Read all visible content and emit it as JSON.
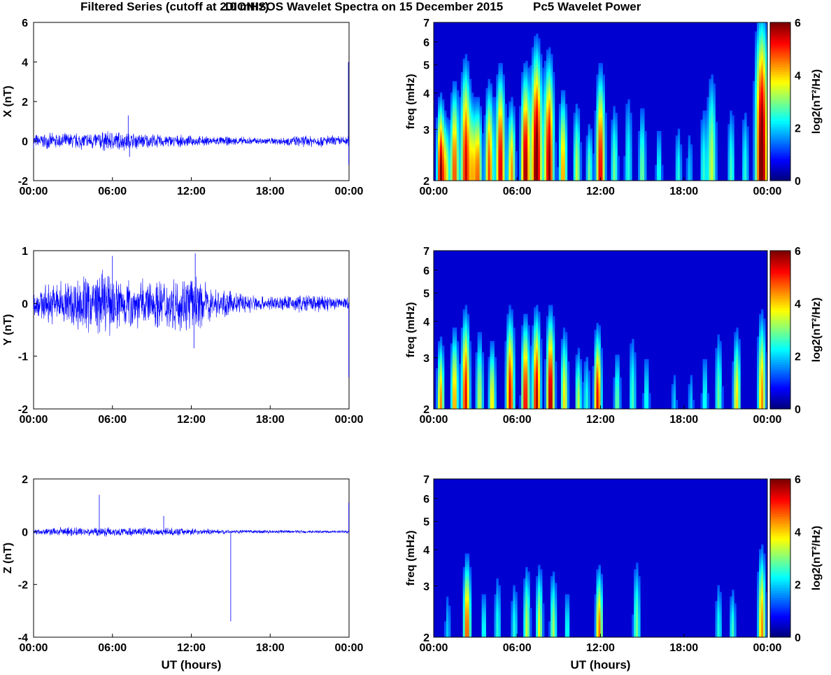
{
  "titles": {
    "left": "Filtered Series (cutoff at 2.0 mHz)",
    "center": "DIONISOS Wavelet Spectra on 15 December 2015",
    "right": "Pc5 Wavelet Power"
  },
  "chart_data": [
    {
      "type": "line",
      "component": "X",
      "ylabel": "X (nT)",
      "xlabel": "",
      "ylim": [
        -2,
        6
      ],
      "yticks": [
        "-2",
        "0",
        "2",
        "4",
        "6"
      ],
      "xticks": [
        "00:00",
        "06:00",
        "12:00",
        "18:00",
        "00:00"
      ],
      "xlim_hours": [
        0,
        24
      ],
      "noise_amp": [
        [
          0,
          0.4
        ],
        [
          4,
          0.5
        ],
        [
          6,
          0.6
        ],
        [
          9,
          0.4
        ],
        [
          12,
          0.3
        ],
        [
          18,
          0.2
        ],
        [
          21,
          0.35
        ],
        [
          24,
          0.3
        ]
      ],
      "spikes": [
        [
          7.2,
          1.3
        ],
        [
          7.3,
          -0.8
        ],
        [
          23.95,
          4.0
        ],
        [
          23.98,
          -1.2
        ]
      ],
      "color": "#0000ff"
    },
    {
      "type": "line",
      "component": "Y",
      "ylabel": "Y (nT)",
      "xlabel": "",
      "ylim": [
        -2,
        1
      ],
      "yticks": [
        "-2",
        "-1",
        "0",
        "1"
      ],
      "xticks": [
        "00:00",
        "06:00",
        "12:00",
        "18:00",
        "00:00"
      ],
      "xlim_hours": [
        0,
        24
      ],
      "noise_amp": [
        [
          0,
          0.3
        ],
        [
          2,
          0.5
        ],
        [
          5,
          0.7
        ],
        [
          8,
          0.5
        ],
        [
          12,
          0.6
        ],
        [
          14,
          0.3
        ],
        [
          18,
          0.15
        ],
        [
          21,
          0.2
        ],
        [
          24,
          0.15
        ]
      ],
      "spikes": [
        [
          12.3,
          0.95
        ],
        [
          12.2,
          -0.85
        ],
        [
          23.98,
          -1.4
        ],
        [
          6,
          0.9
        ]
      ],
      "color": "#0000ff"
    },
    {
      "type": "line",
      "component": "Z",
      "ylabel": "Z (nT)",
      "xlabel": "UT (hours)",
      "ylim": [
        -4,
        2
      ],
      "yticks": [
        "-4",
        "-2",
        "0",
        "2"
      ],
      "xticks": [
        "00:00",
        "06:00",
        "12:00",
        "18:00",
        "00:00"
      ],
      "xlim_hours": [
        0,
        24
      ],
      "noise_amp": [
        [
          0,
          0.1
        ],
        [
          2,
          0.2
        ],
        [
          6,
          0.2
        ],
        [
          12,
          0.15
        ],
        [
          15,
          0.08
        ],
        [
          24,
          0.06
        ]
      ],
      "spikes": [
        [
          5,
          1.4
        ],
        [
          15,
          -3.4
        ],
        [
          9.9,
          0.6
        ],
        [
          23.98,
          1.1
        ]
      ],
      "color": "#0000ff"
    },
    {
      "type": "heatmap",
      "component": "X",
      "ylabel": "freq (mHz)",
      "xlabel": "",
      "yscale": "log",
      "ylim": [
        2,
        7
      ],
      "yticks": [
        "2",
        "3",
        "4",
        "5",
        "6",
        "7"
      ],
      "xticks": [
        "00:00",
        "06:00",
        "12:00",
        "18:00",
        "00:00"
      ],
      "colorbar": {
        "label": "log2(nT²/Hz)",
        "range": [
          0,
          6
        ],
        "ticks": [
          "0",
          "2",
          "4",
          "6"
        ]
      },
      "events": [
        [
          0.5,
          5.5,
          3.5
        ],
        [
          1.5,
          4.5,
          4
        ],
        [
          2.3,
          5,
          4.8
        ],
        [
          3.2,
          4,
          3.5
        ],
        [
          4,
          4.5,
          4
        ],
        [
          4.8,
          5.2,
          4.5
        ],
        [
          5.6,
          4,
          3.5
        ],
        [
          6.6,
          5.5,
          4.5
        ],
        [
          7.4,
          6,
          5.5
        ],
        [
          8.3,
          5.5,
          5
        ],
        [
          9.3,
          4,
          3.8
        ],
        [
          10.3,
          3,
          3.5
        ],
        [
          11.2,
          2.5,
          3
        ],
        [
          12,
          5,
          4.5
        ],
        [
          13,
          2.5,
          3.5
        ],
        [
          14,
          2,
          4
        ],
        [
          15,
          2.5,
          3.5
        ],
        [
          16.2,
          2,
          3
        ],
        [
          17.6,
          2,
          3
        ],
        [
          18.4,
          1.5,
          3
        ],
        [
          19.4,
          2,
          3.5
        ],
        [
          20,
          3,
          4.5
        ],
        [
          21.4,
          2.2,
          3.5
        ],
        [
          22.4,
          2,
          3.5
        ],
        [
          23.6,
          6,
          7
        ],
        [
          0.9,
          3,
          3
        ],
        [
          2.8,
          3,
          3.5
        ]
      ]
    },
    {
      "type": "heatmap",
      "component": "Y",
      "ylabel": "freq (mHz)",
      "xlabel": "",
      "yscale": "log",
      "ylim": [
        2,
        7
      ],
      "yticks": [
        "2",
        "3",
        "4",
        "5",
        "6",
        "7"
      ],
      "xticks": [
        "00:00",
        "06:00",
        "12:00",
        "18:00",
        "00:00"
      ],
      "colorbar": {
        "label": "log2(nT²/Hz)",
        "range": [
          0,
          6
        ],
        "ticks": [
          "0",
          "2",
          "4",
          "6"
        ]
      },
      "events": [
        [
          0.5,
          4,
          3.2
        ],
        [
          1.5,
          4,
          3.5
        ],
        [
          2.3,
          5,
          4
        ],
        [
          3.3,
          3,
          3.5
        ],
        [
          4.2,
          3.5,
          3.2
        ],
        [
          5.5,
          5,
          4
        ],
        [
          6.6,
          5,
          3.8
        ],
        [
          7.4,
          5.3,
          4
        ],
        [
          8.4,
          5.5,
          4
        ],
        [
          9.4,
          3.5,
          3.5
        ],
        [
          10.4,
          3,
          3
        ],
        [
          11.8,
          5,
          3.5
        ],
        [
          13.2,
          2.5,
          3
        ],
        [
          14.3,
          2.2,
          3.5
        ],
        [
          15.3,
          2,
          3
        ],
        [
          17.3,
          1.5,
          2.6
        ],
        [
          18.5,
          1.5,
          2.6
        ],
        [
          19.5,
          2,
          3
        ],
        [
          20.5,
          2.5,
          3.5
        ],
        [
          21.8,
          3.5,
          3.5
        ],
        [
          23.6,
          4,
          4
        ],
        [
          11,
          2,
          3
        ]
      ]
    },
    {
      "type": "heatmap",
      "component": "Z",
      "ylabel": "freq (mHz)",
      "xlabel": "UT (hours)",
      "yscale": "log",
      "ylim": [
        2,
        7
      ],
      "yticks": [
        "2",
        "3",
        "4",
        "5",
        "6",
        "7"
      ],
      "xticks": [
        "00:00",
        "06:00",
        "12:00",
        "18:00",
        "00:00"
      ],
      "colorbar": {
        "label": "log2(nT²/Hz)",
        "range": [
          0,
          6
        ],
        "ticks": [
          "0",
          "2",
          "4",
          "6"
        ]
      },
      "events": [
        [
          1,
          1.5,
          2.8
        ],
        [
          2.4,
          4.5,
          3.5
        ],
        [
          3.6,
          2,
          2.8
        ],
        [
          4.6,
          2,
          3.2
        ],
        [
          5.8,
          2,
          3
        ],
        [
          6.7,
          3,
          3.3
        ],
        [
          7.6,
          3.2,
          3.3
        ],
        [
          8.6,
          2.8,
          3.2
        ],
        [
          9.6,
          2,
          2.8
        ],
        [
          11.9,
          4.2,
          3.2
        ],
        [
          14.6,
          2.5,
          3.5
        ],
        [
          20.5,
          2,
          3
        ],
        [
          21.5,
          2.2,
          2.8
        ],
        [
          23.6,
          4,
          3.8
        ]
      ]
    }
  ]
}
